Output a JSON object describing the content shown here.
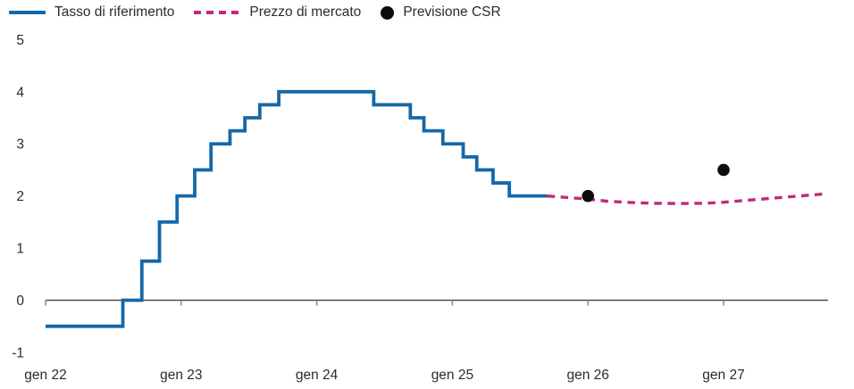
{
  "legend": {
    "items": [
      {
        "label": "Tasso di riferimento",
        "swatch": "solid-line",
        "color": "#1568a8"
      },
      {
        "label": "Prezzo di mercato",
        "swatch": "dashed-line",
        "color": "#c12a79"
      },
      {
        "label": "Previsione CSR",
        "swatch": "dot",
        "color": "#0c0c0c"
      }
    ]
  },
  "chart_data": {
    "type": "line",
    "title": "",
    "x_axis": {
      "tick_labels": [
        "gen 22",
        "gen 23",
        "gen 24",
        "gen 25",
        "gen 26",
        "gen 27"
      ],
      "tick_values": [
        2022,
        2023,
        2024,
        2025,
        2026,
        2027
      ],
      "range": [
        2022,
        2027.77
      ],
      "grid": false
    },
    "y_axis": {
      "tick_labels": [
        "-1",
        "0",
        "1",
        "2",
        "3",
        "4",
        "5"
      ],
      "tick_values": [
        -1,
        0,
        1,
        2,
        3,
        4,
        5
      ],
      "range": [
        -1,
        5
      ],
      "grid": false
    },
    "series": [
      {
        "name": "Tasso di riferimento",
        "type": "step",
        "color": "#1568a8",
        "points": [
          [
            2022.0,
            -0.5
          ],
          [
            2022.57,
            0.0
          ],
          [
            2022.71,
            0.75
          ],
          [
            2022.84,
            1.5
          ],
          [
            2022.97,
            2.0
          ],
          [
            2023.1,
            2.5
          ],
          [
            2023.22,
            3.0
          ],
          [
            2023.36,
            3.25
          ],
          [
            2023.47,
            3.5
          ],
          [
            2023.58,
            3.75
          ],
          [
            2023.72,
            4.0
          ],
          [
            2024.42,
            3.75
          ],
          [
            2024.69,
            3.5
          ],
          [
            2024.79,
            3.25
          ],
          [
            2024.93,
            3.0
          ],
          [
            2025.08,
            2.75
          ],
          [
            2025.18,
            2.5
          ],
          [
            2025.3,
            2.25
          ],
          [
            2025.42,
            2.0
          ]
        ],
        "end_x": 2025.7
      },
      {
        "name": "Prezzo di mercato",
        "type": "dashed-line",
        "color": "#c12a79",
        "points": [
          [
            2025.7,
            2.0
          ],
          [
            2025.85,
            1.97
          ],
          [
            2026.0,
            1.94
          ],
          [
            2026.14,
            1.9
          ],
          [
            2026.27,
            1.88
          ],
          [
            2026.47,
            1.86
          ],
          [
            2026.67,
            1.855
          ],
          [
            2026.86,
            1.86
          ],
          [
            2027.0,
            1.88
          ],
          [
            2027.14,
            1.91
          ],
          [
            2027.28,
            1.94
          ],
          [
            2027.42,
            1.97
          ],
          [
            2027.56,
            2.0
          ],
          [
            2027.7,
            2.03
          ],
          [
            2027.77,
            2.05
          ]
        ]
      },
      {
        "name": "Previsione CSR",
        "type": "scatter",
        "color": "#0c0c0c",
        "points": [
          [
            2026.0,
            2.0
          ],
          [
            2027.0,
            2.5
          ]
        ]
      }
    ]
  }
}
